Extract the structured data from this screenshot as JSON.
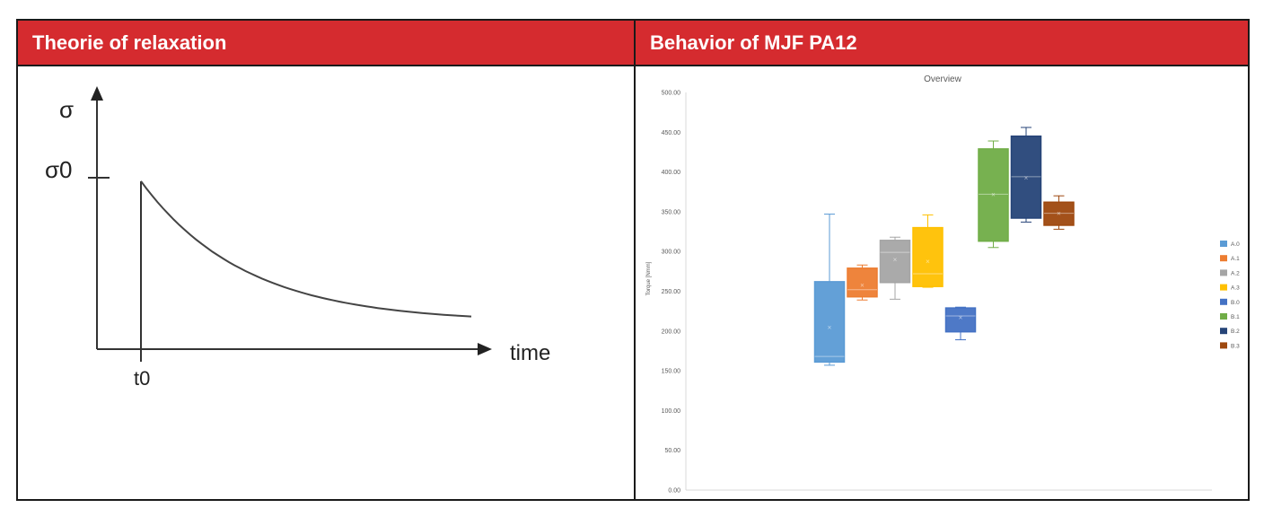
{
  "panels": {
    "left": {
      "title": "Theorie of relaxation"
    },
    "right": {
      "title": "Behavior of MJF PA12"
    }
  },
  "colors": {
    "header_bg": "#d52b2f",
    "header_text": "#ffffff"
  },
  "chart_data": [
    {
      "type": "line",
      "subtype": "schematic-relaxation-curve",
      "title": "",
      "ylabel": "σ",
      "xlabel": "time",
      "annotations": {
        "y_marker": "σ0",
        "x_marker": "t0"
      },
      "curve": {
        "description_points_relative": [
          [
            0.0,
            1.0
          ],
          [
            0.1,
            0.78
          ],
          [
            0.25,
            0.55
          ],
          [
            0.5,
            0.32
          ],
          [
            0.75,
            0.21
          ],
          [
            1.0,
            0.18
          ]
        ]
      }
    },
    {
      "type": "boxplot",
      "title": "Overview",
      "ylabel": "Torque [Nmm]",
      "xlabel": "",
      "ylim": [
        0,
        500
      ],
      "yticks": [
        "0.00",
        "50.00",
        "100.00",
        "150.00",
        "200.00",
        "250.00",
        "300.00",
        "350.00",
        "400.00",
        "450.00",
        "500.00"
      ],
      "legend_position": "right",
      "series": [
        {
          "name": "A.0",
          "color": "#5b9bd5",
          "min": 157,
          "q1": 161,
          "median": 168,
          "q3": 262,
          "max": 347,
          "mean": 205
        },
        {
          "name": "A.1",
          "color": "#ed7d31",
          "min": 239,
          "q1": 243,
          "median": 252,
          "q3": 279,
          "max": 283,
          "mean": 258
        },
        {
          "name": "A.2",
          "color": "#a5a5a5",
          "min": 240,
          "q1": 261,
          "median": 299,
          "q3": 314,
          "max": 318,
          "mean": 290
        },
        {
          "name": "A.3",
          "color": "#ffc000",
          "min": 255,
          "q1": 256,
          "median": 272,
          "q3": 330,
          "max": 346,
          "mean": 288
        },
        {
          "name": "B.0",
          "color": "#4472c4",
          "min": 189,
          "q1": 199,
          "median": 219,
          "q3": 229,
          "max": 230,
          "mean": 217
        },
        {
          "name": "B.1",
          "color": "#70ad47",
          "min": 305,
          "q1": 313,
          "median": 372,
          "q3": 429,
          "max": 439,
          "mean": 372
        },
        {
          "name": "B.2",
          "color": "#264478",
          "min": 337,
          "q1": 342,
          "median": 394,
          "q3": 445,
          "max": 456,
          "mean": 393
        },
        {
          "name": "B.3",
          "color": "#9e480e",
          "min": 328,
          "q1": 333,
          "median": 348,
          "q3": 362,
          "max": 370,
          "mean": 348
        }
      ]
    }
  ]
}
